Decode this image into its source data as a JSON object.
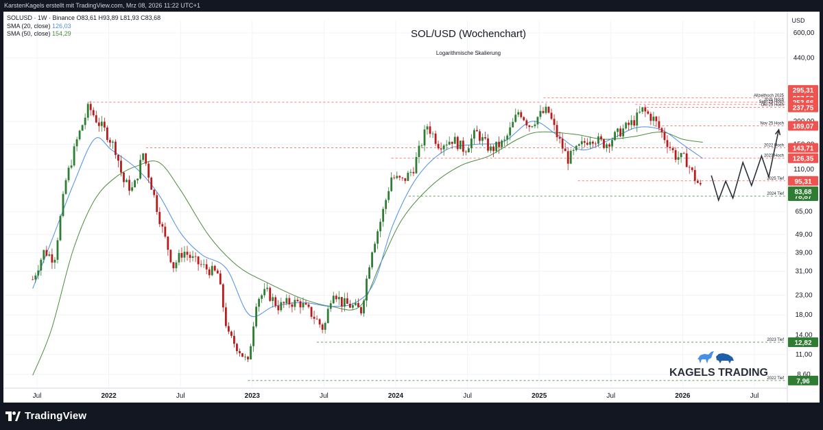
{
  "header": {
    "attribution": "KarstenKagels erstellt mit TradingView.com, Mrz 08, 2026 11:22 UTC+1"
  },
  "legend": {
    "symbol_line": "SOLUSD · 1W · Binance  O83,61  H93,89  L81,93  C83,68",
    "sma20_label": "SMA (20, close)",
    "sma20_value": "126,03",
    "sma50_label": "SMA (50, close)",
    "sma50_value": "154,29"
  },
  "brand": {
    "footer": "TradingView",
    "watermark": "KAGELS TRADING"
  },
  "colors": {
    "up": "#2e7d32",
    "down": "#b71c1c",
    "sma20": "#4a8fe7",
    "sma50": "#4a8c3a",
    "resistance": "#ef5350",
    "support": "#2e7d32",
    "background": "#ffffff",
    "frame": "#131722"
  },
  "chart_data": {
    "type": "candlestick",
    "title": "SOL/USD (Wochenchart)",
    "subtitle": "Logarithmische Skalierung",
    "currency": "USD",
    "y_scale": "log",
    "ylim": [
      7.3,
      700
    ],
    "x_ticks": [
      "Jul",
      "2022",
      "Jul",
      "2023",
      "Jul",
      "2024",
      "Jul",
      "2025",
      "Jul",
      "2026",
      "Jul"
    ],
    "y_ticks": [
      600,
      440,
      200,
      150,
      110,
      65,
      49,
      39,
      31,
      23,
      18,
      14,
      11,
      8.6
    ],
    "y_tick_labels": [
      "600,00",
      "440,00",
      "200,00",
      "150,00",
      "110,00",
      "65,00",
      "49,00",
      "39,00",
      "31,00",
      "23,00",
      "18,00",
      "14,00",
      "11,00",
      "8,60"
    ],
    "levels": [
      {
        "label": "Allzeithoch 2025",
        "value": 267.52,
        "tag": "267,52",
        "kind": "resistance"
      },
      {
        "label": "2021 Hoch",
        "value": 253.66,
        "tag": "253,66",
        "kind": "resistance"
      },
      {
        "label": "Sept 25 Hoch",
        "value": 247,
        "tag": "",
        "kind": "resistance"
      },
      {
        "label": "Okt 25 Hoch",
        "value": 237.75,
        "tag": "237,75",
        "kind": "resistance"
      },
      {
        "label": "Nov 25 Hoch",
        "value": 189.07,
        "tag": "189,07",
        "kind": "resistance"
      },
      {
        "label": "2022 Hoch",
        "value": 143.71,
        "tag": "143,71",
        "kind": "resistance"
      },
      {
        "label": "2023 Hoch",
        "value": 126.35,
        "tag": "126,35",
        "kind": "resistance"
      },
      {
        "label": "2025 Tief",
        "value": 95.31,
        "tag": "95,31",
        "kind": "resistance"
      },
      {
        "label": "2024 Tief",
        "value": 78.87,
        "tag": "78,87",
        "kind": "support"
      },
      {
        "label": "2023 Tief",
        "value": 12.82,
        "tag": "12,82",
        "kind": "support"
      },
      {
        "label": "2022 Tief",
        "value": 7.96,
        "tag": "7,96",
        "kind": "support"
      }
    ],
    "price_tags": [
      {
        "value": 295.31,
        "tag": "295,31",
        "kind": "resistance"
      },
      {
        "value": 83.68,
        "tag": "83,68",
        "kind": "current"
      }
    ],
    "sma20_last": 126.03,
    "sma50_last": 154.29,
    "close_path": [
      [
        2021.47,
        28
      ],
      [
        2021.55,
        40
      ],
      [
        2021.62,
        36
      ],
      [
        2021.7,
        95
      ],
      [
        2021.78,
        160
      ],
      [
        2021.86,
        240
      ],
      [
        2021.92,
        200
      ],
      [
        2021.98,
        175
      ],
      [
        2022.05,
        140
      ],
      [
        2022.1,
        95
      ],
      [
        2022.17,
        85
      ],
      [
        2022.24,
        135
      ],
      [
        2022.3,
        88
      ],
      [
        2022.38,
        50
      ],
      [
        2022.45,
        33
      ],
      [
        2022.52,
        40
      ],
      [
        2022.6,
        35
      ],
      [
        2022.68,
        32
      ],
      [
        2022.76,
        30
      ],
      [
        2022.83,
        14
      ],
      [
        2022.9,
        12
      ],
      [
        2022.97,
        9.8
      ],
      [
        2023.03,
        22
      ],
      [
        2023.1,
        24
      ],
      [
        2023.18,
        20
      ],
      [
        2023.25,
        21
      ],
      [
        2023.33,
        21
      ],
      [
        2023.42,
        18
      ],
      [
        2023.5,
        15
      ],
      [
        2023.56,
        25
      ],
      [
        2023.62,
        21
      ],
      [
        2023.7,
        20
      ],
      [
        2023.76,
        19
      ],
      [
        2023.83,
        40
      ],
      [
        2023.9,
        60
      ],
      [
        2023.97,
        100
      ],
      [
        2024.05,
        95
      ],
      [
        2024.12,
        110
      ],
      [
        2024.22,
        190
      ],
      [
        2024.3,
        150
      ],
      [
        2024.4,
        160
      ],
      [
        2024.48,
        140
      ],
      [
        2024.56,
        175
      ],
      [
        2024.66,
        140
      ],
      [
        2024.76,
        155
      ],
      [
        2024.86,
        230
      ],
      [
        2024.93,
        190
      ],
      [
        2025.0,
        215
      ],
      [
        2025.06,
        230
      ],
      [
        2025.12,
        170
      ],
      [
        2025.2,
        125
      ],
      [
        2025.28,
        145
      ],
      [
        2025.36,
        165
      ],
      [
        2025.46,
        150
      ],
      [
        2025.56,
        175
      ],
      [
        2025.66,
        200
      ],
      [
        2025.72,
        230
      ],
      [
        2025.8,
        205
      ],
      [
        2025.88,
        160
      ],
      [
        2025.95,
        130
      ],
      [
        2026.02,
        125
      ],
      [
        2026.08,
        100
      ],
      [
        2026.14,
        84
      ]
    ],
    "sma20_path": [
      [
        2021.47,
        25
      ],
      [
        2021.6,
        45
      ],
      [
        2021.75,
        90
      ],
      [
        2021.9,
        160
      ],
      [
        2022.02,
        140
      ],
      [
        2022.2,
        110
      ],
      [
        2022.35,
        80
      ],
      [
        2022.5,
        50
      ],
      [
        2022.65,
        38
      ],
      [
        2022.82,
        32
      ],
      [
        2022.98,
        18
      ],
      [
        2023.15,
        20
      ],
      [
        2023.35,
        21
      ],
      [
        2023.55,
        20
      ],
      [
        2023.72,
        21
      ],
      [
        2023.85,
        27
      ],
      [
        2023.98,
        55
      ],
      [
        2024.15,
        100
      ],
      [
        2024.35,
        140
      ],
      [
        2024.55,
        150
      ],
      [
        2024.75,
        155
      ],
      [
        2024.95,
        200
      ],
      [
        2025.12,
        170
      ],
      [
        2025.3,
        140
      ],
      [
        2025.5,
        160
      ],
      [
        2025.68,
        185
      ],
      [
        2025.85,
        180
      ],
      [
        2026.0,
        150
      ],
      [
        2026.14,
        126
      ]
    ],
    "sma50_path": [
      [
        2021.47,
        8.5
      ],
      [
        2021.6,
        15
      ],
      [
        2021.75,
        40
      ],
      [
        2021.9,
        75
      ],
      [
        2022.05,
        100
      ],
      [
        2022.2,
        115
      ],
      [
        2022.35,
        120
      ],
      [
        2022.5,
        85
      ],
      [
        2022.7,
        48
      ],
      [
        2022.9,
        33
      ],
      [
        2023.1,
        27
      ],
      [
        2023.35,
        22
      ],
      [
        2023.55,
        20
      ],
      [
        2023.75,
        20
      ],
      [
        2023.9,
        35
      ],
      [
        2024.05,
        60
      ],
      [
        2024.25,
        90
      ],
      [
        2024.45,
        115
      ],
      [
        2024.65,
        130
      ],
      [
        2024.85,
        160
      ],
      [
        2025.0,
        175
      ],
      [
        2025.25,
        170
      ],
      [
        2025.45,
        160
      ],
      [
        2025.65,
        165
      ],
      [
        2025.85,
        175
      ],
      [
        2026.0,
        160
      ],
      [
        2026.14,
        154
      ]
    ],
    "projection_path": [
      [
        2026.2,
        102
      ],
      [
        2026.25,
        75
      ],
      [
        2026.3,
        95
      ],
      [
        2026.35,
        77
      ],
      [
        2026.42,
        120
      ],
      [
        2026.48,
        90
      ],
      [
        2026.55,
        130
      ],
      [
        2026.6,
        100
      ],
      [
        2026.67,
        180
      ]
    ]
  }
}
